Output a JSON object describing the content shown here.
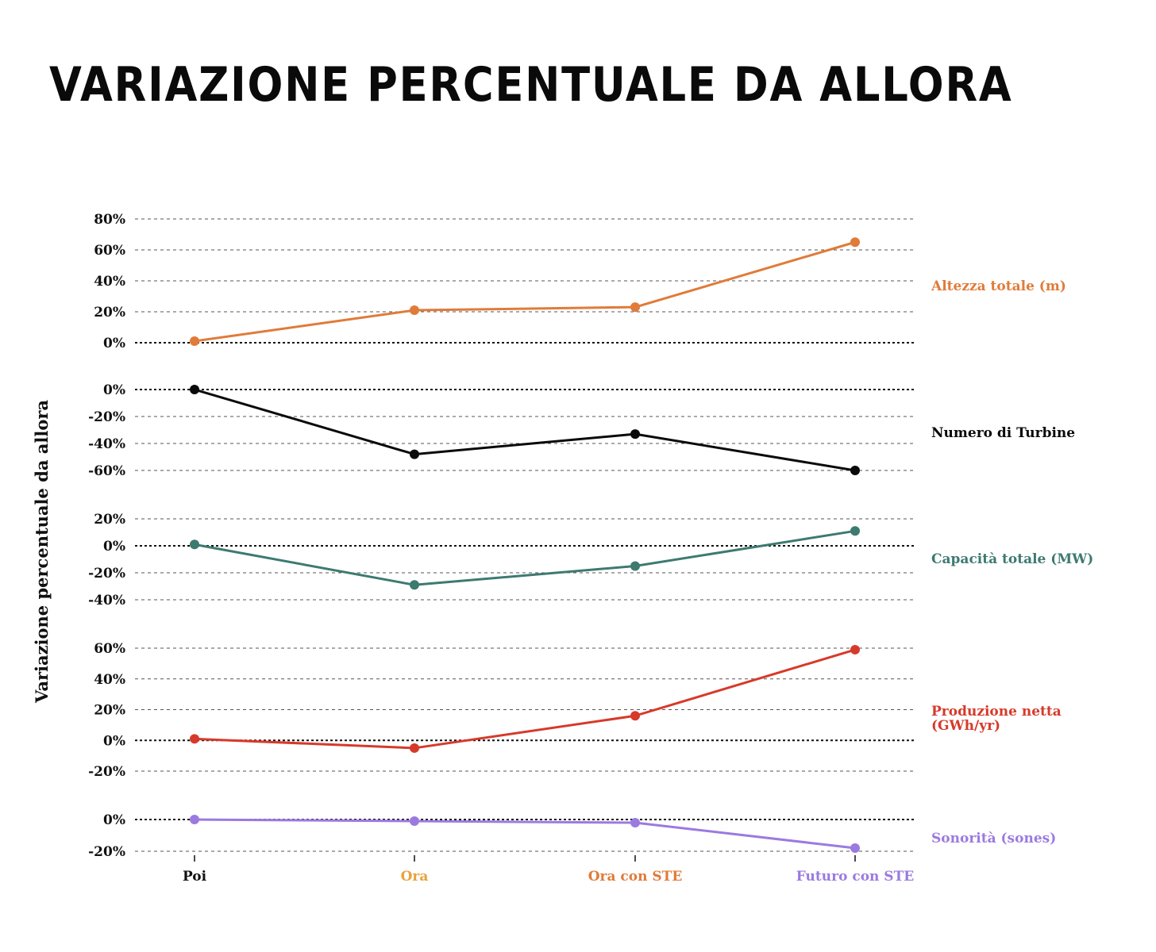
{
  "chart_data": {
    "type": "line",
    "title": "VARIAZIONE PERCENTUALE DA ALLORA",
    "ylabel": "Variazione percentuale da allora",
    "categories": [
      {
        "label": "Poi",
        "color": "#111111"
      },
      {
        "label": "Ora",
        "color": "#e8a23a"
      },
      {
        "label": "Ora con STE",
        "color": "#e07b39"
      },
      {
        "label": "Futuro con STE",
        "color": "#9b7ae0"
      }
    ],
    "grid": true,
    "panels": [
      {
        "name": "Altezza totale (m)",
        "label_lines": [
          "Altezza totale (m)"
        ],
        "color": "#e07b39",
        "ylim": [
          0,
          80
        ],
        "ticks": [
          80,
          60,
          40,
          20,
          0
        ],
        "tick_labels": [
          "80%",
          "60%",
          "40%",
          "20%",
          "0%"
        ],
        "values": [
          1,
          21,
          23,
          65
        ]
      },
      {
        "name": "Numero di Turbine",
        "label_lines": [
          "Numero di Turbine"
        ],
        "color": "#0a0a0a",
        "ylim": [
          -60,
          0
        ],
        "ticks": [
          0,
          -20,
          -40,
          -60
        ],
        "tick_labels": [
          "0%",
          "-20%",
          "-40%",
          "-60%"
        ],
        "values": [
          0,
          -48,
          -33,
          -60
        ]
      },
      {
        "name": "Capacità totale (MW)",
        "label_lines": [
          "Capacità totale (MW)"
        ],
        "color": "#3d7a70",
        "ylim": [
          -40,
          20
        ],
        "ticks": [
          20,
          0,
          -20,
          -40
        ],
        "tick_labels": [
          "20%",
          "0%",
          "-20%",
          "-40%"
        ],
        "values": [
          1,
          -29,
          -15,
          11
        ]
      },
      {
        "name": "Produzione netta (GWh/yr)",
        "label_lines": [
          "Produzione netta",
          "(GWh/yr)"
        ],
        "color": "#d63a2a",
        "ylim": [
          -20,
          60
        ],
        "ticks": [
          60,
          40,
          20,
          0,
          -20
        ],
        "tick_labels": [
          "60%",
          "40%",
          "20%",
          "0%",
          "-20%"
        ],
        "values": [
          1,
          -5,
          16,
          59
        ]
      },
      {
        "name": "Sonorità (sones)",
        "label_lines": [
          "Sonorità (sones)"
        ],
        "color": "#9b7ae0",
        "ylim": [
          -20,
          0
        ],
        "ticks": [
          0,
          -20
        ],
        "tick_labels": [
          "0%",
          "-20%"
        ],
        "values": [
          0,
          -1,
          -2,
          -18
        ]
      }
    ]
  }
}
